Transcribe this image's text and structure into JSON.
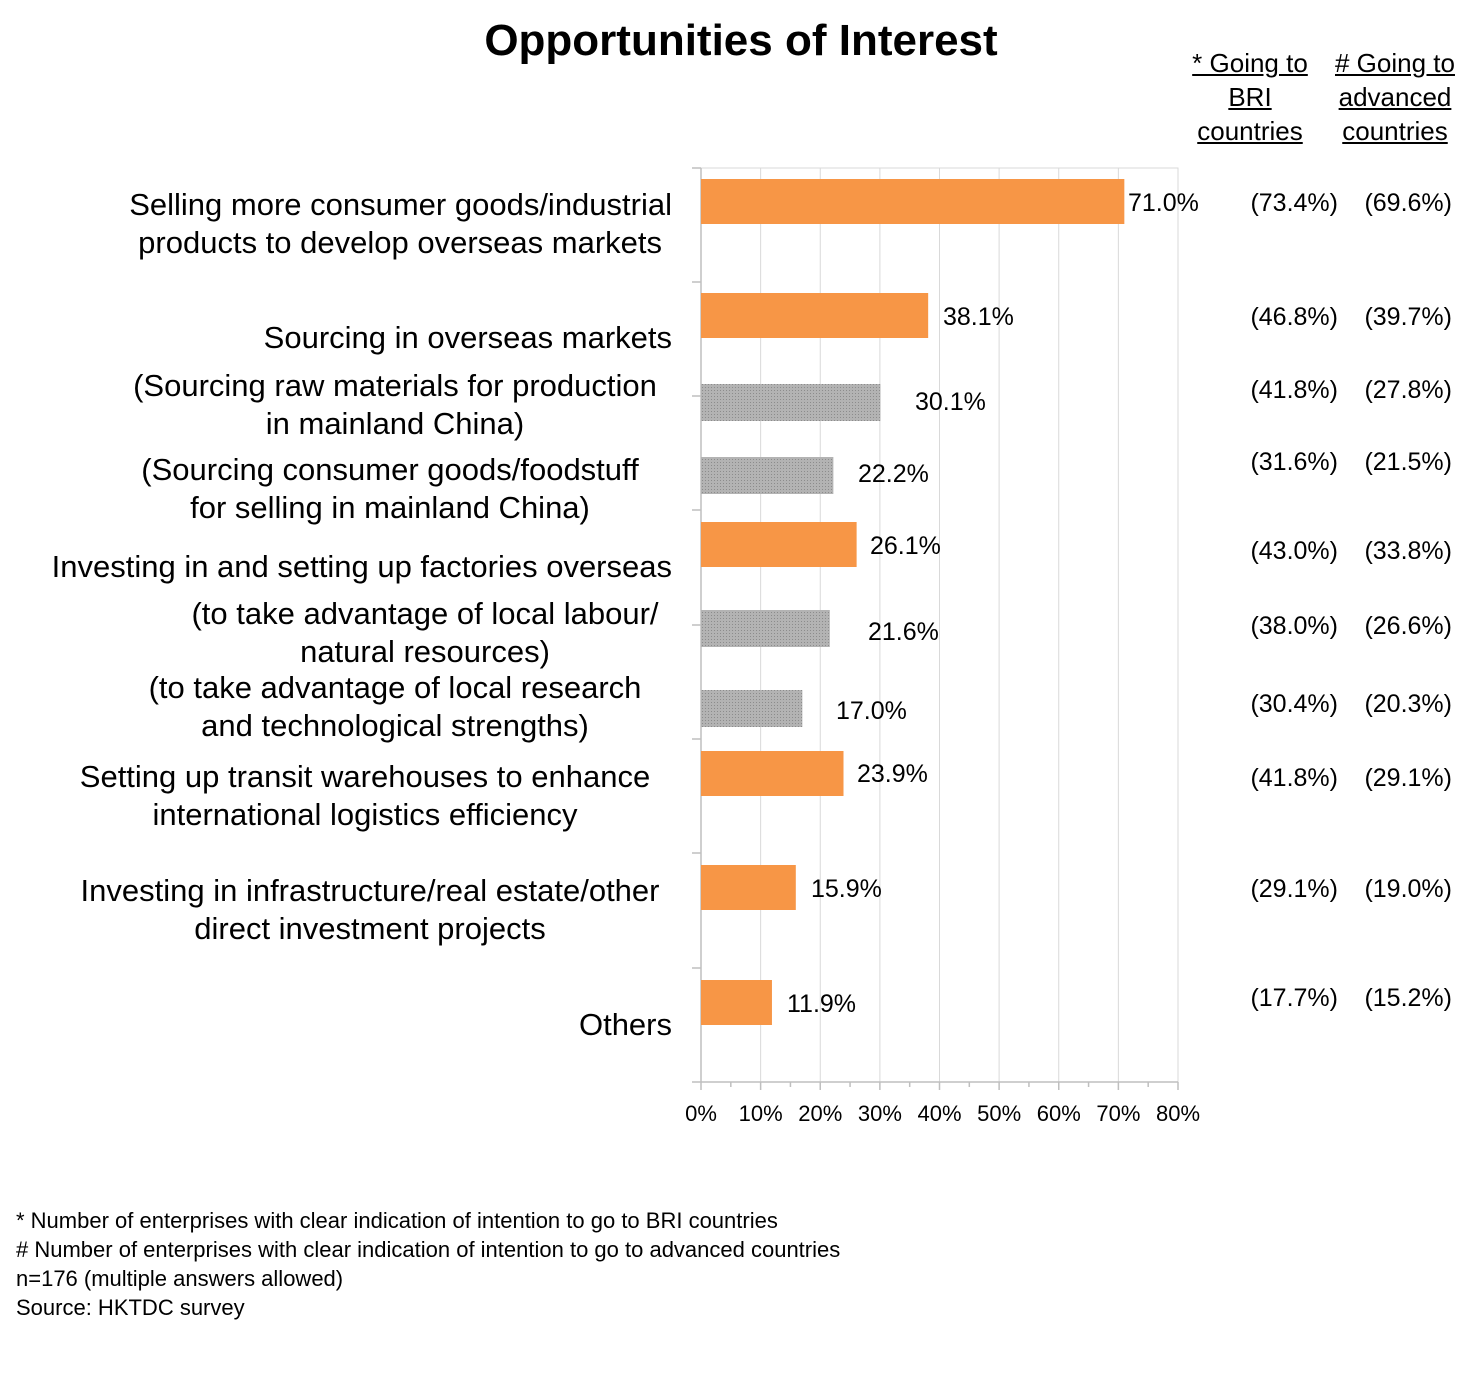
{
  "chart_data": {
    "type": "bar",
    "title": "Opportunities of Interest",
    "column_headers": {
      "bri": "* Going to BRI countries",
      "advanced": "# Going to advanced countries"
    },
    "xlim": [
      0,
      80
    ],
    "xticks": [
      "0%",
      "10%",
      "20%",
      "30%",
      "40%",
      "50%",
      "60%",
      "70%",
      "80%"
    ],
    "grid": true,
    "colors": {
      "main": "#f79646",
      "sub": "#a6a6a6"
    },
    "bars": [
      {
        "label": "Selling more consumer goods/industrial products to develop overseas markets",
        "value": 71.0,
        "value_label": "71.0%",
        "bri": "(73.4%)",
        "advanced": "(69.6%)",
        "kind": "main"
      },
      {
        "label": "Sourcing in overseas markets",
        "value": 38.1,
        "value_label": "38.1%",
        "bri": "(46.8%)",
        "advanced": "(39.7%)",
        "kind": "main"
      },
      {
        "label": "(Sourcing raw materials for production in mainland China)",
        "value": 30.1,
        "value_label": "30.1%",
        "bri": "(41.8%)",
        "advanced": "(27.8%)",
        "kind": "sub"
      },
      {
        "label": "(Sourcing consumer goods/foodstuff for selling in mainland China)",
        "value": 22.2,
        "value_label": "22.2%",
        "bri": "(31.6%)",
        "advanced": "(21.5%)",
        "kind": "sub"
      },
      {
        "label": "Investing in and setting up factories overseas",
        "value": 26.1,
        "value_label": "26.1%",
        "bri": "(43.0%)",
        "advanced": "(33.8%)",
        "kind": "main"
      },
      {
        "label": "(to take advantage of local labour/ natural resources)",
        "value": 21.6,
        "value_label": "21.6%",
        "bri": "(38.0%)",
        "advanced": "(26.6%)",
        "kind": "sub"
      },
      {
        "label": "(to take advantage of local research and technological strengths)",
        "value": 17.0,
        "value_label": "17.0%",
        "bri": "(30.4%)",
        "advanced": "(20.3%)",
        "kind": "sub"
      },
      {
        "label": "Setting up transit warehouses to enhance international logistics efficiency",
        "value": 23.9,
        "value_label": "23.9%",
        "bri": "(41.8%)",
        "advanced": "(29.1%)",
        "kind": "main"
      },
      {
        "label": "Investing in infrastructure/real estate/other direct investment projects",
        "value": 15.9,
        "value_label": "15.9%",
        "bri": "(29.1%)",
        "advanced": "(19.0%)",
        "kind": "main"
      },
      {
        "label": "Others",
        "value": 11.9,
        "value_label": "11.9%",
        "bri": "(17.7%)",
        "advanced": "(15.2%)",
        "kind": "main"
      }
    ]
  },
  "labels": {
    "l0a": "Selling more consumer goods/industrial",
    "l0b": "products to develop overseas markets",
    "l1": "Sourcing in overseas markets",
    "l2a": "(Sourcing raw materials for production",
    "l2b": "in mainland China)",
    "l3a": "(Sourcing consumer goods/foodstuff",
    "l3b": "for selling in mainland China)",
    "l4": "Investing in and setting up factories overseas",
    "l5a": "(to take advantage of local labour/",
    "l5b": "natural resources)",
    "l6a": "(to take advantage of local research",
    "l6b": "and technological strengths)",
    "l7a": "Setting up transit warehouses to enhance",
    "l7b": "international logistics efficiency",
    "l8a": "Investing in infrastructure/real estate/other",
    "l8b": "direct investment projects",
    "l9": "Others"
  },
  "headers": {
    "bri_1": "* Going to",
    "bri_2": "BRI",
    "bri_3": "countries",
    "adv_1": "# Going to",
    "adv_2": "advanced",
    "adv_3": "countries"
  },
  "footnotes": {
    "f1": "*  Number of enterprises with clear indication of intention to go to BRI countries",
    "f2": "#  Number of enterprises with clear indication of intention to go to advanced countries",
    "f3": "n=176 (multiple answers allowed)",
    "f4": "Source: HKTDC survey"
  }
}
